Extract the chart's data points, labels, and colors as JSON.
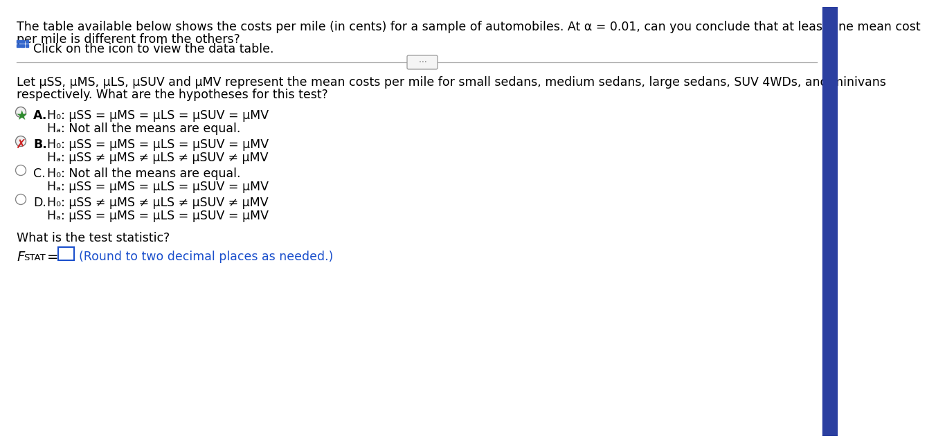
{
  "bg_color": "#ffffff",
  "text_color": "#000000",
  "blue_color": "#1a4fcc",
  "green_color": "#2e8b2e",
  "red_color": "#cc2222",
  "right_bar_color": "#2b3fa0",
  "divider_color": "#aaaaaa",
  "radio_color": "#888888",
  "top_line1": "The table available below shows the costs per mile (in cents) for a sample of automobiles. At α = 0.01, can you conclude that at least one mean cost",
  "top_line2": "per mile is different from the others?",
  "click_text": "Click on the icon to view the data table.",
  "let_line1": "Let μSS, μMS, μLS, μSUV and μMV represent the mean costs per mile for small sedans, medium sedans, large sedans, SUV 4WDs, and minivans",
  "let_line2": "respectively. What are the hypotheses for this test?",
  "A_H0": "H₀: μSS = μMS = μLS = μSUV = μMV",
  "A_Ha": "Hₐ: Not all the means are equal.",
  "B_H0": "H₀: μSS = μMS = μLS = μSUV = μMV",
  "B_Ha": "Hₐ: μSS ≠ μMS ≠ μLS ≠ μSUV ≠ μMV",
  "C_H0": "H₀: Not all the means are equal.",
  "C_Ha": "Hₐ: μSS = μMS = μLS = μSUV = μMV",
  "D_H0": "H₀: μSS ≠ μMS ≠ μLS ≠ μSUV ≠ μMV",
  "D_Ha": "Hₐ: μSS = μMS = μLS = μSUV = μMV",
  "stat_text": "What is the test statistic?",
  "fstat_label": "F",
  "fstat_sub": "STAT",
  "hint_text": "(Round to two decimal places as needed.)"
}
